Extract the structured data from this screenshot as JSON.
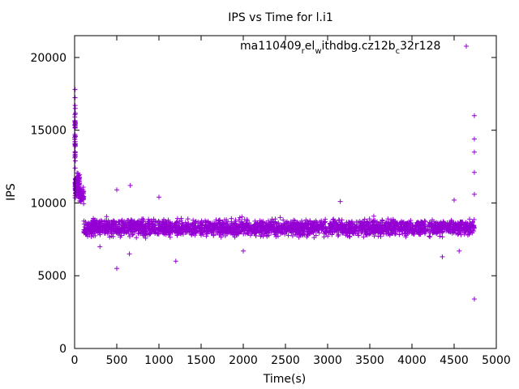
{
  "chart_data": {
    "type": "scatter",
    "title": "IPS vs Time for l.i1",
    "xlabel": "Time(s)",
    "ylabel": "IPS",
    "xlim": [
      0,
      5000
    ],
    "ylim": [
      0,
      21500
    ],
    "xticks": [
      0,
      500,
      1000,
      1500,
      2000,
      2500,
      3000,
      3500,
      4000,
      4500,
      5000
    ],
    "yticks": [
      0,
      5000,
      10000,
      15000,
      20000
    ],
    "grid": false,
    "legend": "top-right",
    "marker": "plus",
    "series": [
      {
        "legend_parts": [
          "ma110409",
          "r",
          "el",
          "w",
          "ithdbg.cz12b",
          "c",
          "32r128"
        ],
        "color": "#9400d3",
        "segments": [
          {
            "x_start": 0,
            "x_end": 10,
            "y_center": 14500,
            "y_spread": 3500,
            "count": 40
          },
          {
            "x_start": 5,
            "x_end": 60,
            "y_center": 11200,
            "y_spread": 1300,
            "count": 140
          },
          {
            "x_start": 60,
            "x_end": 110,
            "y_center": 10500,
            "y_spread": 800,
            "count": 50
          },
          {
            "x_start": 110,
            "x_end": 4740,
            "y_center": 8300,
            "y_spread": 900,
            "count": 2600
          }
        ],
        "outliers": [
          {
            "x": 5,
            "y": 17800
          },
          {
            "x": 8,
            "y": 16500
          },
          {
            "x": 4740,
            "y": 16000
          },
          {
            "x": 4740,
            "y": 14400
          },
          {
            "x": 4740,
            "y": 13500
          },
          {
            "x": 4740,
            "y": 12100
          },
          {
            "x": 4740,
            "y": 10600
          },
          {
            "x": 4740,
            "y": 3400
          },
          {
            "x": 660,
            "y": 11200
          },
          {
            "x": 500,
            "y": 10900
          },
          {
            "x": 1000,
            "y": 10400
          },
          {
            "x": 3150,
            "y": 10100
          },
          {
            "x": 500,
            "y": 5500
          },
          {
            "x": 1200,
            "y": 6000
          },
          {
            "x": 650,
            "y": 6500
          },
          {
            "x": 4360,
            "y": 6300
          },
          {
            "x": 4560,
            "y": 6700
          },
          {
            "x": 2000,
            "y": 6700
          },
          {
            "x": 300,
            "y": 7000
          },
          {
            "x": 4500,
            "y": 10200
          }
        ]
      }
    ]
  }
}
